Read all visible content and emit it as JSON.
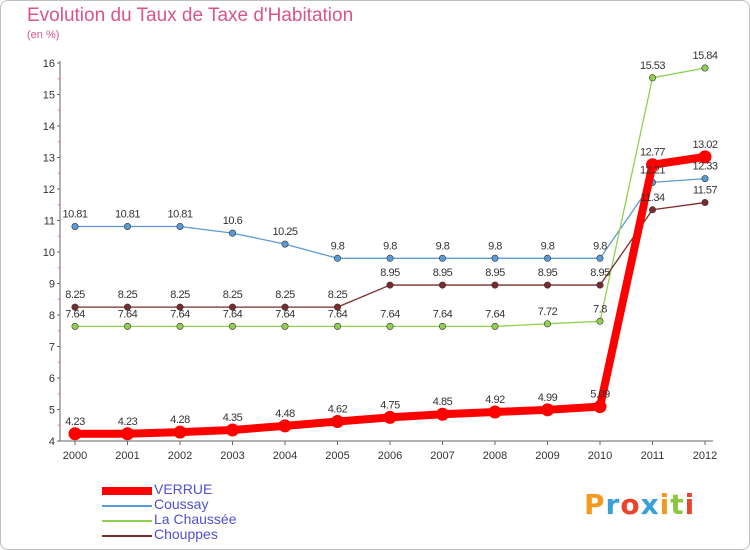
{
  "title": "Evolution du Taux de Taxe d'Habitation",
  "unit_label": "(en %)",
  "logo_text": "Proxiti",
  "chart_data": {
    "type": "line",
    "title": "Evolution du Taux de Taxe d'Habitation",
    "ylabel": "(en %)",
    "xlabel": "",
    "x": [
      "2000",
      "2001",
      "2002",
      "2003",
      "2004",
      "2005",
      "2006",
      "2007",
      "2008",
      "2009",
      "2010",
      "2011",
      "2012"
    ],
    "ylim": [
      4,
      16
    ],
    "yticks": [
      4,
      5,
      6,
      7,
      8,
      9,
      10,
      11,
      12,
      13,
      14,
      15,
      16
    ],
    "grid": false,
    "legend": "bottom-left",
    "series": [
      {
        "name": "VERRUE",
        "color": "#ff0000",
        "values": [
          4.23,
          4.23,
          4.28,
          4.35,
          4.48,
          4.62,
          4.75,
          4.85,
          4.92,
          4.99,
          5.09,
          12.77,
          13.02
        ],
        "labels": [
          "4.23",
          "4.23",
          "4.28",
          "4.35",
          "4.48",
          "4.62",
          "4.75",
          "4.85",
          "4.92",
          "4.99",
          "5.09",
          "12.77",
          "13.02"
        ]
      },
      {
        "name": "Coussay",
        "color": "#5b9bd5",
        "values": [
          10.81,
          10.81,
          10.81,
          10.6,
          10.25,
          9.8,
          9.8,
          9.8,
          9.8,
          9.8,
          9.8,
          12.21,
          12.33
        ],
        "labels": [
          "10.81",
          "10.81",
          "10.81",
          "10.6",
          "10.25",
          "9.8",
          "9.8",
          "9.8",
          "9.8",
          "9.8",
          "9.8",
          "12.21",
          "12.33"
        ]
      },
      {
        "name": "La Chaussée",
        "color": "#8fd14f",
        "values": [
          7.64,
          7.64,
          7.64,
          7.64,
          7.64,
          7.64,
          7.64,
          7.64,
          7.64,
          7.72,
          7.8,
          15.53,
          15.84
        ],
        "labels": [
          "7.64",
          "7.64",
          "7.64",
          "7.64",
          "7.64",
          "7.64",
          "7.64",
          "7.64",
          "7.64",
          "7.72",
          "7.8",
          "15.53",
          "15.84"
        ]
      },
      {
        "name": "Chouppes",
        "color": "#7a2c2c",
        "values": [
          8.25,
          8.25,
          8.25,
          8.25,
          8.25,
          8.25,
          8.95,
          8.95,
          8.95,
          8.95,
          8.95,
          11.34,
          11.57
        ],
        "labels": [
          "8.25",
          "8.25",
          "8.25",
          "8.25",
          "8.25",
          "8.25",
          "8.95",
          "8.95",
          "8.95",
          "8.95",
          "8.95",
          "11.34",
          "11.57"
        ]
      }
    ]
  }
}
